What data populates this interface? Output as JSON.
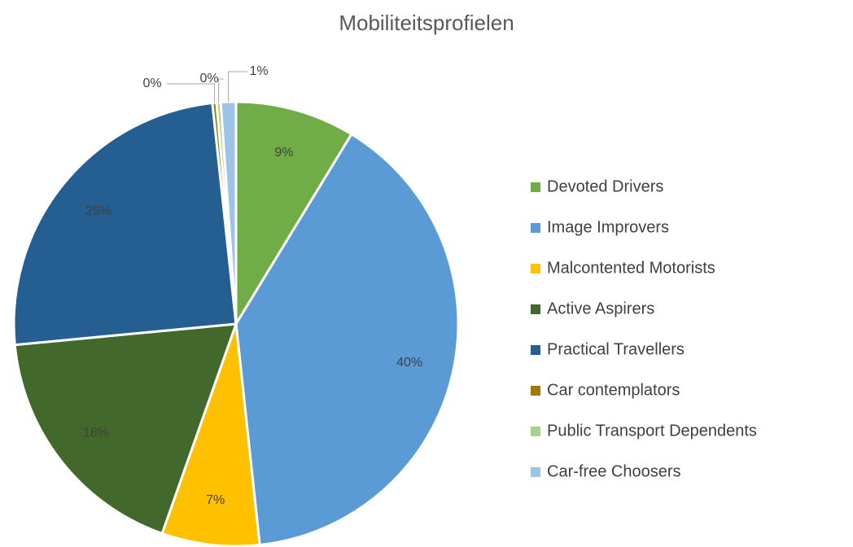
{
  "chart_data": {
    "type": "pie",
    "title": "Mobiliteitsprofielen",
    "categories": [
      "Devoted Drivers",
      "Image Improvers",
      "Malcontented Motorists",
      "Active Aspirers",
      "Practical Travellers",
      "Car contemplators",
      "Public Transport Dependents",
      "Car-free Choosers"
    ],
    "values": [
      8.7,
      39.6,
      7.1,
      18.1,
      24.8,
      0.3,
      0.3,
      1.1
    ],
    "value_labels": [
      "9%",
      "40%",
      "7%",
      "18%",
      "25%",
      "0%",
      "0%",
      "1%"
    ],
    "colors": [
      "#70ad47",
      "#5b9bd5",
      "#ffc000",
      "#43682b",
      "#255e91",
      "#9e7800",
      "#a9d18e",
      "#9dc3e6"
    ],
    "legend": "right"
  }
}
